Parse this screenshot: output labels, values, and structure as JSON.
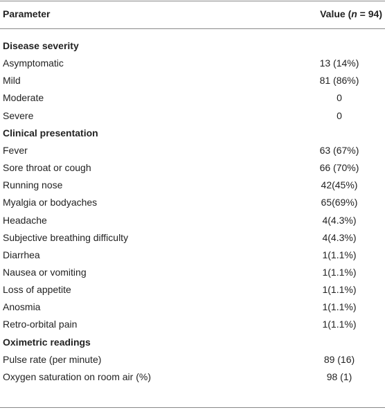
{
  "table": {
    "header": [
      "Parameter",
      [
        "Value (",
        "n",
        " = 94)"
      ]
    ],
    "sections": [
      {
        "title": "Disease severity",
        "rows": [
          [
            "Asymptomatic",
            "13 (14%)"
          ],
          [
            "Mild",
            "81 (86%)"
          ],
          [
            "Moderate",
            "0"
          ],
          [
            "Severe",
            "0"
          ]
        ]
      },
      {
        "title": "Clinical presentation",
        "rows": [
          [
            "Fever",
            "63 (67%)"
          ],
          [
            "Sore throat or cough",
            "66 (70%)"
          ],
          [
            "Running nose",
            "42(45%)"
          ],
          [
            "Myalgia or bodyaches",
            "65(69%)"
          ],
          [
            "Headache",
            "4(4.3%)"
          ],
          [
            "Subjective breathing difficulty",
            "4(4.3%)"
          ],
          [
            "Diarrhea",
            "1(1.1%)"
          ],
          [
            "Nausea or vomiting",
            "1(1.1%)"
          ],
          [
            "Loss of appetite",
            "1(1.1%)"
          ],
          [
            "Anosmia",
            "1(1.1%)"
          ],
          [
            "Retro-orbital pain",
            "1(1.1%)"
          ]
        ]
      },
      {
        "title": "Oximetric readings",
        "rows": [
          [
            "Pulse rate (per minute)",
            "89 (16)"
          ],
          [
            "Oxygen saturation on room air (%)",
            "98 (1)"
          ]
        ]
      }
    ]
  }
}
